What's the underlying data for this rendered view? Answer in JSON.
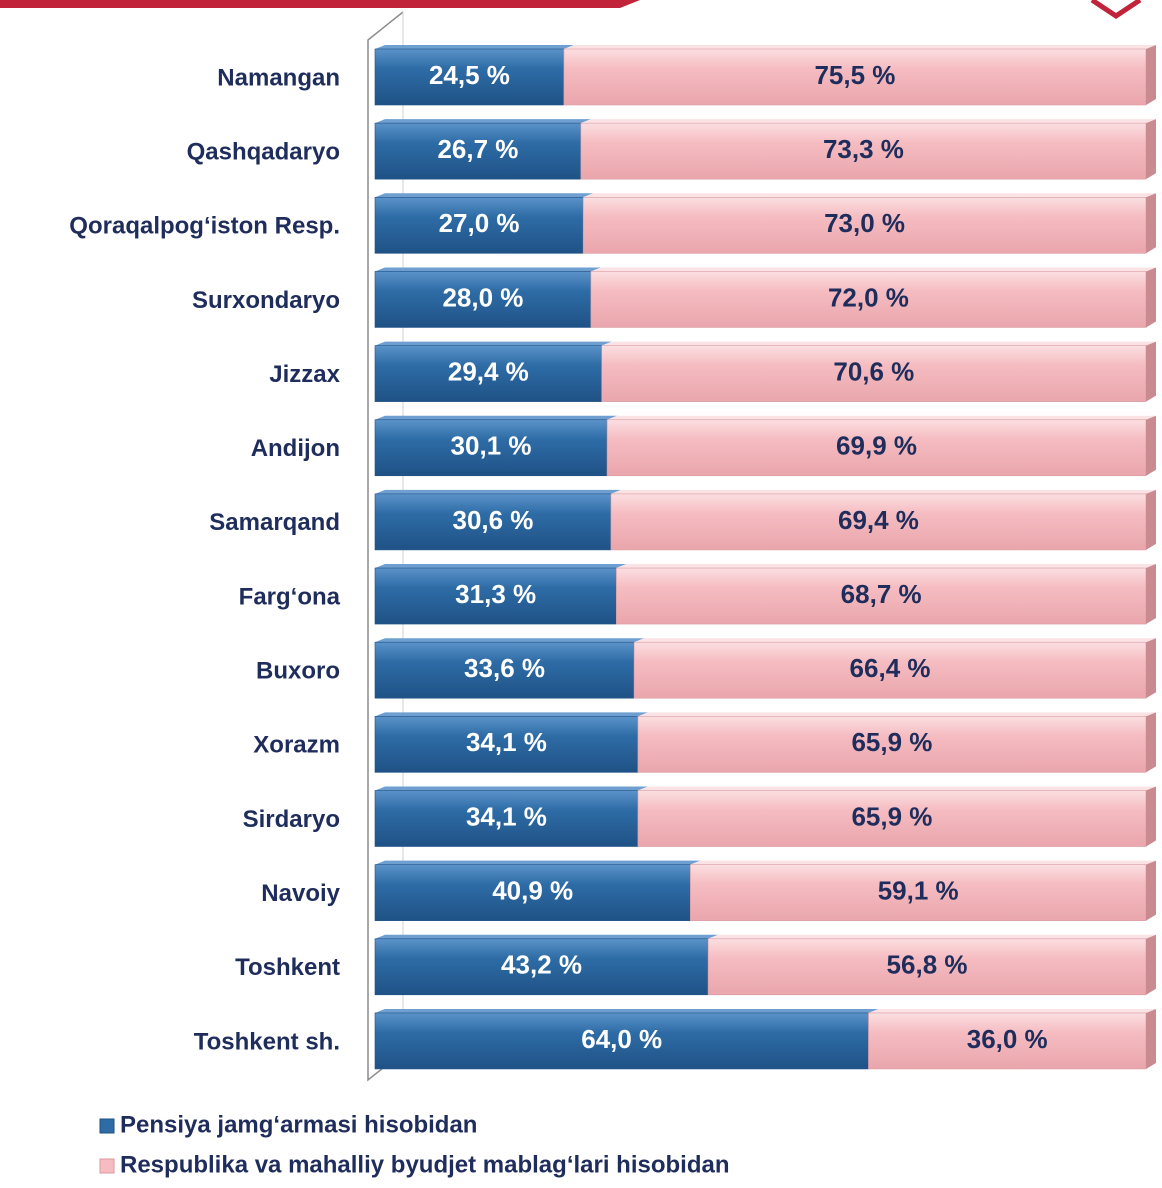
{
  "chart_data": {
    "type": "bar",
    "orientation": "horizontal",
    "stacked": true,
    "categories": [
      "Namangan",
      "Qashqadaryo",
      "Qoraqalpog‘iston Resp.",
      "Surxondaryo",
      "Jizzax",
      "Andijon",
      "Samarqand",
      "Farg‘ona",
      "Buxoro",
      "Xorazm",
      "Sirdaryo",
      "Navoiy",
      "Toshkent",
      "Toshkent sh."
    ],
    "xlim": [
      0,
      100
    ],
    "series": [
      {
        "name": "Pensiya jamg‘armasi hisobidan",
        "color": "#2e6ca6",
        "label_color": "#ffffff",
        "values": [
          24.5,
          26.7,
          27.0,
          28.0,
          29.4,
          30.1,
          30.6,
          31.3,
          33.6,
          34.1,
          34.1,
          40.9,
          43.2,
          64.0
        ],
        "value_labels": [
          "24,5 %",
          "26,7 %",
          "27,0 %",
          "28,0 %",
          "29,4 %",
          "30,1 %",
          "30,6 %",
          "31,3 %",
          "33,6 %",
          "34,1 %",
          "34,1 %",
          "40,9 %",
          "43,2 %",
          "64,0 %"
        ]
      },
      {
        "name": "Respublika va mahalliy byudjet mablag‘lari hisobidan",
        "color": "#f5bcc1",
        "label_color": "#1f2d5c",
        "values": [
          75.5,
          73.3,
          73.0,
          72.0,
          70.6,
          69.9,
          69.4,
          68.7,
          66.4,
          65.9,
          65.9,
          59.1,
          56.8,
          36.0
        ],
        "value_labels": [
          "75,5 %",
          "73,3 %",
          "73,0 %",
          "72,0 %",
          "70,6 %",
          "69,9 %",
          "69,4 %",
          "68,7 %",
          "66,4 %",
          "65,9 %",
          "65,9 %",
          "59,1 %",
          "56,8 %",
          "36,0 %"
        ]
      }
    ]
  }
}
